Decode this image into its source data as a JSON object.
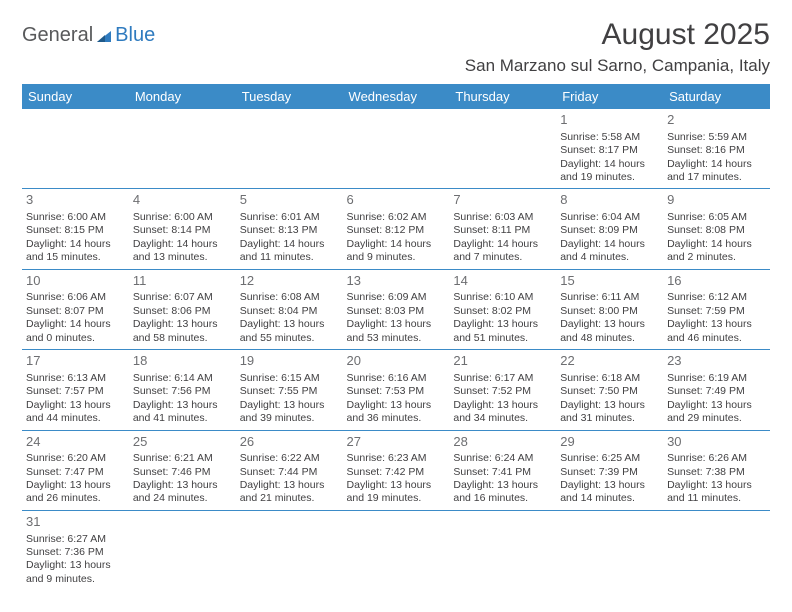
{
  "logo": {
    "part1": "General",
    "part2": "Blue"
  },
  "title": "August 2025",
  "location": "San Marzano sul Sarno, Campania, Italy",
  "colors": {
    "header_bg": "#3b8bc7",
    "header_fg": "#ffffff",
    "grid_line": "#3b8bc7",
    "text": "#414042",
    "daynum": "#6d6e71",
    "logo_gray": "#58595b",
    "logo_blue": "#2f7bbf",
    "bg": "#ffffff"
  },
  "typography": {
    "title_fontsize": 30,
    "location_fontsize": 17,
    "header_fontsize": 13,
    "daynum_fontsize": 13,
    "cell_fontsize": 10.5
  },
  "days": [
    "Sunday",
    "Monday",
    "Tuesday",
    "Wednesday",
    "Thursday",
    "Friday",
    "Saturday"
  ],
  "weeks": [
    [
      null,
      null,
      null,
      null,
      null,
      {
        "n": "1",
        "sr": "Sunrise: 5:58 AM",
        "ss": "Sunset: 8:17 PM",
        "dl": "Daylight: 14 hours and 19 minutes."
      },
      {
        "n": "2",
        "sr": "Sunrise: 5:59 AM",
        "ss": "Sunset: 8:16 PM",
        "dl": "Daylight: 14 hours and 17 minutes."
      }
    ],
    [
      {
        "n": "3",
        "sr": "Sunrise: 6:00 AM",
        "ss": "Sunset: 8:15 PM",
        "dl": "Daylight: 14 hours and 15 minutes."
      },
      {
        "n": "4",
        "sr": "Sunrise: 6:00 AM",
        "ss": "Sunset: 8:14 PM",
        "dl": "Daylight: 14 hours and 13 minutes."
      },
      {
        "n": "5",
        "sr": "Sunrise: 6:01 AM",
        "ss": "Sunset: 8:13 PM",
        "dl": "Daylight: 14 hours and 11 minutes."
      },
      {
        "n": "6",
        "sr": "Sunrise: 6:02 AM",
        "ss": "Sunset: 8:12 PM",
        "dl": "Daylight: 14 hours and 9 minutes."
      },
      {
        "n": "7",
        "sr": "Sunrise: 6:03 AM",
        "ss": "Sunset: 8:11 PM",
        "dl": "Daylight: 14 hours and 7 minutes."
      },
      {
        "n": "8",
        "sr": "Sunrise: 6:04 AM",
        "ss": "Sunset: 8:09 PM",
        "dl": "Daylight: 14 hours and 4 minutes."
      },
      {
        "n": "9",
        "sr": "Sunrise: 6:05 AM",
        "ss": "Sunset: 8:08 PM",
        "dl": "Daylight: 14 hours and 2 minutes."
      }
    ],
    [
      {
        "n": "10",
        "sr": "Sunrise: 6:06 AM",
        "ss": "Sunset: 8:07 PM",
        "dl": "Daylight: 14 hours and 0 minutes."
      },
      {
        "n": "11",
        "sr": "Sunrise: 6:07 AM",
        "ss": "Sunset: 8:06 PM",
        "dl": "Daylight: 13 hours and 58 minutes."
      },
      {
        "n": "12",
        "sr": "Sunrise: 6:08 AM",
        "ss": "Sunset: 8:04 PM",
        "dl": "Daylight: 13 hours and 55 minutes."
      },
      {
        "n": "13",
        "sr": "Sunrise: 6:09 AM",
        "ss": "Sunset: 8:03 PM",
        "dl": "Daylight: 13 hours and 53 minutes."
      },
      {
        "n": "14",
        "sr": "Sunrise: 6:10 AM",
        "ss": "Sunset: 8:02 PM",
        "dl": "Daylight: 13 hours and 51 minutes."
      },
      {
        "n": "15",
        "sr": "Sunrise: 6:11 AM",
        "ss": "Sunset: 8:00 PM",
        "dl": "Daylight: 13 hours and 48 minutes."
      },
      {
        "n": "16",
        "sr": "Sunrise: 6:12 AM",
        "ss": "Sunset: 7:59 PM",
        "dl": "Daylight: 13 hours and 46 minutes."
      }
    ],
    [
      {
        "n": "17",
        "sr": "Sunrise: 6:13 AM",
        "ss": "Sunset: 7:57 PM",
        "dl": "Daylight: 13 hours and 44 minutes."
      },
      {
        "n": "18",
        "sr": "Sunrise: 6:14 AM",
        "ss": "Sunset: 7:56 PM",
        "dl": "Daylight: 13 hours and 41 minutes."
      },
      {
        "n": "19",
        "sr": "Sunrise: 6:15 AM",
        "ss": "Sunset: 7:55 PM",
        "dl": "Daylight: 13 hours and 39 minutes."
      },
      {
        "n": "20",
        "sr": "Sunrise: 6:16 AM",
        "ss": "Sunset: 7:53 PM",
        "dl": "Daylight: 13 hours and 36 minutes."
      },
      {
        "n": "21",
        "sr": "Sunrise: 6:17 AM",
        "ss": "Sunset: 7:52 PM",
        "dl": "Daylight: 13 hours and 34 minutes."
      },
      {
        "n": "22",
        "sr": "Sunrise: 6:18 AM",
        "ss": "Sunset: 7:50 PM",
        "dl": "Daylight: 13 hours and 31 minutes."
      },
      {
        "n": "23",
        "sr": "Sunrise: 6:19 AM",
        "ss": "Sunset: 7:49 PM",
        "dl": "Daylight: 13 hours and 29 minutes."
      }
    ],
    [
      {
        "n": "24",
        "sr": "Sunrise: 6:20 AM",
        "ss": "Sunset: 7:47 PM",
        "dl": "Daylight: 13 hours and 26 minutes."
      },
      {
        "n": "25",
        "sr": "Sunrise: 6:21 AM",
        "ss": "Sunset: 7:46 PM",
        "dl": "Daylight: 13 hours and 24 minutes."
      },
      {
        "n": "26",
        "sr": "Sunrise: 6:22 AM",
        "ss": "Sunset: 7:44 PM",
        "dl": "Daylight: 13 hours and 21 minutes."
      },
      {
        "n": "27",
        "sr": "Sunrise: 6:23 AM",
        "ss": "Sunset: 7:42 PM",
        "dl": "Daylight: 13 hours and 19 minutes."
      },
      {
        "n": "28",
        "sr": "Sunrise: 6:24 AM",
        "ss": "Sunset: 7:41 PM",
        "dl": "Daylight: 13 hours and 16 minutes."
      },
      {
        "n": "29",
        "sr": "Sunrise: 6:25 AM",
        "ss": "Sunset: 7:39 PM",
        "dl": "Daylight: 13 hours and 14 minutes."
      },
      {
        "n": "30",
        "sr": "Sunrise: 6:26 AM",
        "ss": "Sunset: 7:38 PM",
        "dl": "Daylight: 13 hours and 11 minutes."
      }
    ],
    [
      {
        "n": "31",
        "sr": "Sunrise: 6:27 AM",
        "ss": "Sunset: 7:36 PM",
        "dl": "Daylight: 13 hours and 9 minutes."
      },
      null,
      null,
      null,
      null,
      null,
      null
    ]
  ]
}
